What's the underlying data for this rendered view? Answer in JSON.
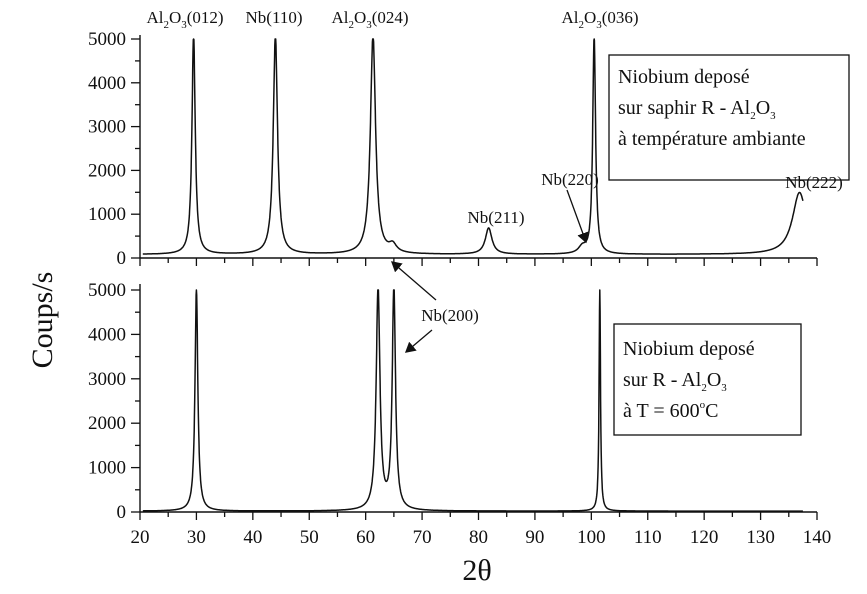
{
  "chart_data": [
    {
      "type": "line",
      "panel": "top",
      "xlabel": "2θ",
      "ylabel": "Coups/s",
      "xlim": [
        20,
        140
      ],
      "ylim": [
        0,
        5000
      ],
      "x_ticks": [
        20,
        30,
        40,
        50,
        60,
        70,
        80,
        90,
        100,
        110,
        120,
        130,
        140
      ],
      "y_ticks": [
        0,
        1000,
        2000,
        3000,
        4000,
        5000
      ],
      "legend": {
        "placement": "top-right",
        "lines": [
          {
            "base": "Niobium deposé"
          },
          {
            "base": "sur saphir R - Al",
            "sub1": "2",
            "mid": "O",
            "sub2": "3"
          },
          {
            "base": "à température ambiante"
          }
        ]
      },
      "peaks": [
        {
          "label_base": "Al",
          "label_sub1": "2",
          "label_mid": "O",
          "label_sub2": "3",
          "label_tail": "(012)",
          "x": 29.5,
          "height": 5000,
          "width": 0.35
        },
        {
          "label_base": "Nb(110)",
          "x": 44.0,
          "height": 5000,
          "width": 0.45
        },
        {
          "label_base": "Al",
          "label_sub1": "2",
          "label_mid": "O",
          "label_sub2": "3",
          "label_tail": "(024)",
          "x": 61.3,
          "height": 5000,
          "width": 0.55
        },
        {
          "label_base": "Nb(200)",
          "x": 64.8,
          "height": 180,
          "width": 0.8
        },
        {
          "label_base": "Nb(211)",
          "x": 81.8,
          "height": 600,
          "width": 0.7
        },
        {
          "label_base": "Nb(220)",
          "x": 98.4,
          "height": 150,
          "width": 0.8
        },
        {
          "label_base": "Al",
          "label_sub1": "2",
          "label_mid": "O",
          "label_sub2": "3",
          "label_tail": "(036)",
          "x": 100.5,
          "height": 5000,
          "width": 0.3
        },
        {
          "label_base": "Nb(222)",
          "x": 136.9,
          "height": 1400,
          "width": 1.5
        }
      ],
      "baseline": 80
    },
    {
      "type": "line",
      "panel": "bottom",
      "xlim": [
        20,
        140
      ],
      "ylim": [
        0,
        5000
      ],
      "x_ticks": [
        20,
        30,
        40,
        50,
        60,
        70,
        80,
        90,
        100,
        110,
        120,
        130,
        140
      ],
      "y_ticks": [
        0,
        1000,
        2000,
        3000,
        4000,
        5000
      ],
      "legend": {
        "placement": "right",
        "lines": [
          {
            "base": "Niobium deposé"
          },
          {
            "base": "sur R - Al",
            "sub1": "2",
            "mid": "O",
            "sub2": "3"
          },
          {
            "base": "à T = 600",
            "sup": "o",
            "tail": "C"
          }
        ]
      },
      "peaks": [
        {
          "x": 30.0,
          "height": 5000,
          "width": 0.3
        },
        {
          "x": 62.2,
          "height": 5000,
          "width": 0.4
        },
        {
          "label_base": "Nb(200)",
          "x": 65.0,
          "height": 5000,
          "width": 0.35
        },
        {
          "x": 101.5,
          "height": 5000,
          "width": 0.15
        }
      ],
      "baseline": 20
    }
  ]
}
